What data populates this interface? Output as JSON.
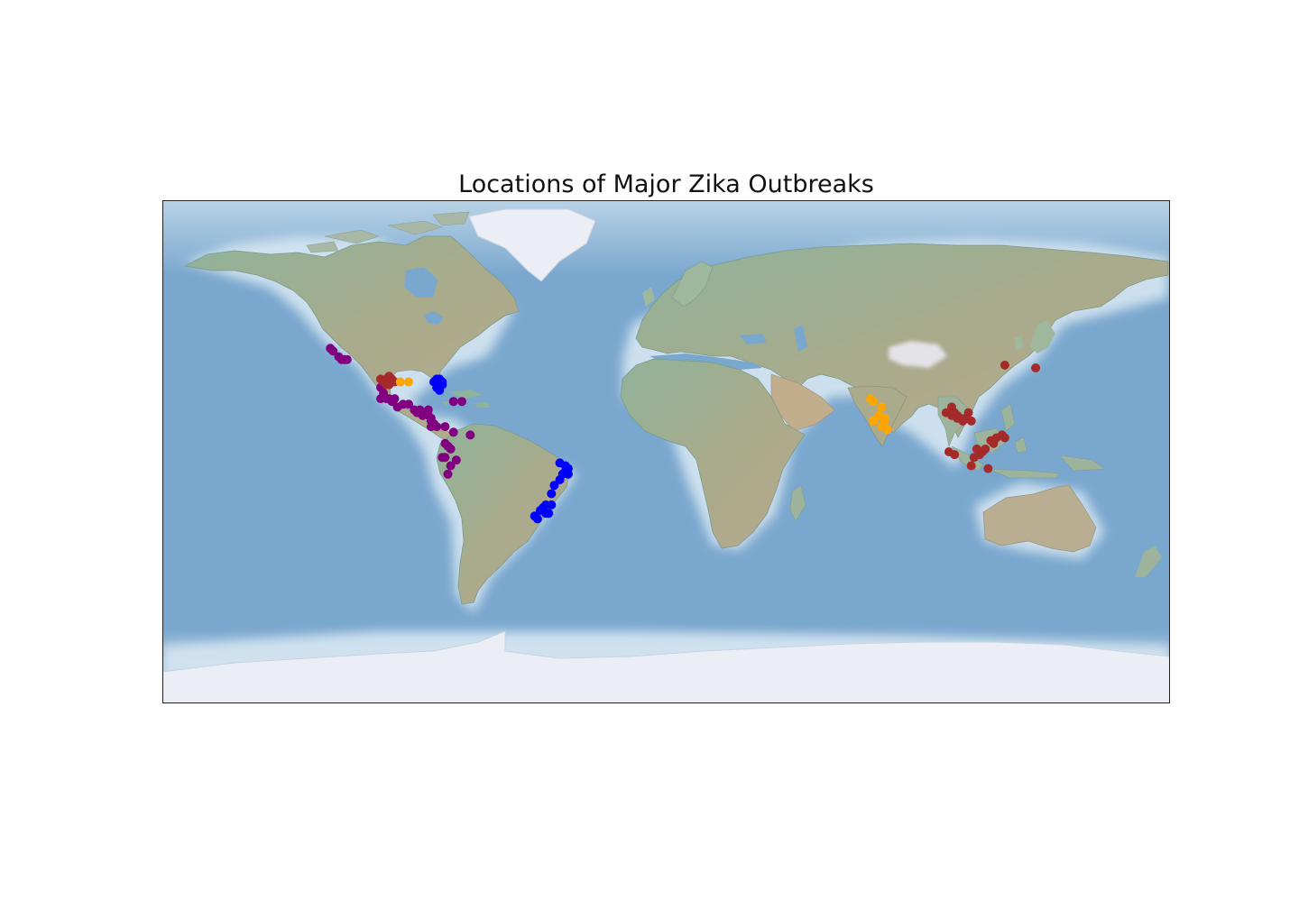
{
  "title": "Locations of Major Zika Outbreaks",
  "colors": {
    "ocean": "#7aa7ce",
    "ocean_light": "#cfe3f0",
    "land": "#8fb39a",
    "land_dry": "#b7aa8e",
    "ice": "#eef0f6",
    "frame": "#222222"
  },
  "map_extent": {
    "lon": [
      -180,
      180
    ],
    "lat": [
      -90,
      90
    ]
  },
  "series": [
    {
      "name": "purple",
      "color": "#800080",
      "points": [
        [
          -120,
          37
        ],
        [
          -119,
          36
        ],
        [
          -117,
          34
        ],
        [
          -116,
          33
        ],
        [
          -115,
          33
        ],
        [
          -114,
          33
        ],
        [
          -102,
          23
        ],
        [
          -101,
          21
        ],
        [
          -102,
          19
        ],
        [
          -100,
          19
        ],
        [
          -99,
          19
        ],
        [
          -98,
          18
        ],
        [
          -97,
          19
        ],
        [
          -96,
          16
        ],
        [
          -94,
          17
        ],
        [
          -92,
          17
        ],
        [
          -90,
          15
        ],
        [
          -89,
          14
        ],
        [
          -88,
          15
        ],
        [
          -87,
          14
        ],
        [
          -85,
          15
        ],
        [
          -76,
          18
        ],
        [
          -73,
          18
        ],
        [
          -85,
          13
        ],
        [
          -84,
          11
        ],
        [
          -84,
          9
        ],
        [
          -83,
          10
        ],
        [
          -82,
          9
        ],
        [
          -79,
          9
        ],
        [
          -76,
          7
        ],
        [
          -79,
          3
        ],
        [
          -78,
          2
        ],
        [
          -77,
          1
        ],
        [
          -79,
          -2
        ],
        [
          -80,
          -2
        ],
        [
          -77,
          -5
        ],
        [
          -75,
          -3
        ],
        [
          -78,
          -8
        ],
        [
          -83,
          10
        ],
        [
          -84,
          12
        ],
        [
          -87,
          13
        ],
        [
          -70,
          6
        ]
      ]
    },
    {
      "name": "brown",
      "color": "#a52a2a",
      "points": [
        [
          -102,
          26
        ],
        [
          -101,
          25
        ],
        [
          -100,
          26
        ],
        [
          -99,
          27
        ],
        [
          -98,
          26
        ],
        [
          -97,
          25
        ],
        [
          -100,
          24
        ],
        [
          -99,
          24
        ],
        [
          121,
          31
        ],
        [
          132,
          30
        ],
        [
          100,
          14
        ],
        [
          102,
          13
        ],
        [
          103,
          14
        ],
        [
          104,
          13
        ],
        [
          105,
          12
        ],
        [
          106,
          11
        ],
        [
          107,
          12
        ],
        [
          108,
          14
        ],
        [
          109,
          11
        ],
        [
          102,
          16
        ],
        [
          104,
          12
        ],
        [
          101,
          0
        ],
        [
          103,
          -1
        ],
        [
          109,
          -5
        ],
        [
          110,
          -2
        ],
        [
          112,
          -1
        ],
        [
          113,
          0
        ],
        [
          114,
          1
        ],
        [
          116,
          4
        ],
        [
          117,
          3
        ],
        [
          118,
          5
        ],
        [
          120,
          6
        ],
        [
          121,
          5
        ],
        [
          115,
          -6
        ],
        [
          111,
          1
        ]
      ]
    },
    {
      "name": "orange",
      "color": "#ffa500",
      "points": [
        [
          -95,
          25
        ],
        [
          -92,
          25
        ],
        [
          73,
          19
        ],
        [
          74,
          18
        ],
        [
          77,
          16
        ],
        [
          76,
          13
        ],
        [
          78,
          12
        ],
        [
          78,
          11
        ],
        [
          79,
          8
        ],
        [
          77,
          9
        ],
        [
          74,
          11
        ]
      ]
    },
    {
      "name": "blue",
      "color": "#0000ff",
      "points": [
        [
          -83,
          25
        ],
        [
          -82,
          26
        ],
        [
          -81,
          25
        ],
        [
          -80,
          24
        ],
        [
          -80,
          25
        ],
        [
          -81,
          23
        ],
        [
          -82,
          23
        ],
        [
          -81,
          22
        ],
        [
          -81,
          26
        ],
        [
          -35,
          -6
        ],
        [
          -36,
          -5
        ],
        [
          -38,
          -4
        ],
        [
          -37,
          -8
        ],
        [
          -38,
          -10
        ],
        [
          -40,
          -12
        ],
        [
          -41,
          -15
        ],
        [
          -43,
          -19
        ],
        [
          -44,
          -20
        ],
        [
          -42,
          -22
        ],
        [
          -43,
          -22
        ],
        [
          -45,
          -21
        ],
        [
          -46,
          -24
        ],
        [
          -47,
          -23
        ],
        [
          -41,
          -19
        ],
        [
          -36,
          -7
        ],
        [
          -35,
          -8
        ]
      ]
    }
  ]
}
